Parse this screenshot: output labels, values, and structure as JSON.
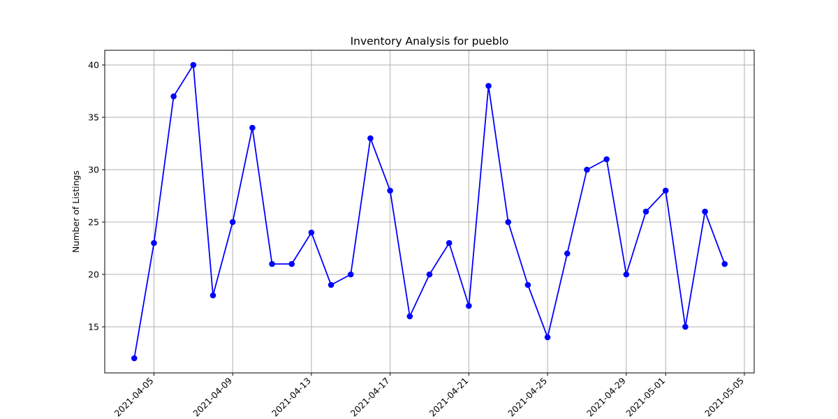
{
  "chart_data": {
    "type": "line",
    "title": "Inventory Analysis for pueblo",
    "xlabel": "",
    "ylabel": "Number of Listings",
    "x": [
      "2021-04-04",
      "2021-04-05",
      "2021-04-06",
      "2021-04-07",
      "2021-04-08",
      "2021-04-09",
      "2021-04-10",
      "2021-04-11",
      "2021-04-12",
      "2021-04-13",
      "2021-04-14",
      "2021-04-15",
      "2021-04-16",
      "2021-04-17",
      "2021-04-18",
      "2021-04-19",
      "2021-04-20",
      "2021-04-21",
      "2021-04-22",
      "2021-04-23",
      "2021-04-24",
      "2021-04-25",
      "2021-04-26",
      "2021-04-27",
      "2021-04-28",
      "2021-04-29",
      "2021-04-30",
      "2021-05-01",
      "2021-05-02",
      "2021-05-03",
      "2021-05-04"
    ],
    "series": [
      {
        "values": [
          12,
          23,
          37,
          40,
          18,
          25,
          34,
          21,
          21,
          24,
          19,
          20,
          33,
          28,
          16,
          20,
          23,
          17,
          38,
          25,
          19,
          14,
          22,
          30,
          31,
          20,
          26,
          28,
          15,
          26,
          21
        ],
        "color": "#0000ff"
      }
    ],
    "ylim": [
      10.6,
      41.4
    ],
    "xlim": [
      "2021-04-02T12:00",
      "2021-05-05T12:00"
    ],
    "yticks": [
      15,
      20,
      25,
      30,
      35,
      40
    ],
    "xticks": [
      "2021-04-05",
      "2021-04-09",
      "2021-04-13",
      "2021-04-17",
      "2021-04-21",
      "2021-04-25",
      "2021-04-29",
      "2021-05-01",
      "2021-05-05"
    ],
    "grid": true,
    "legend": "none"
  }
}
